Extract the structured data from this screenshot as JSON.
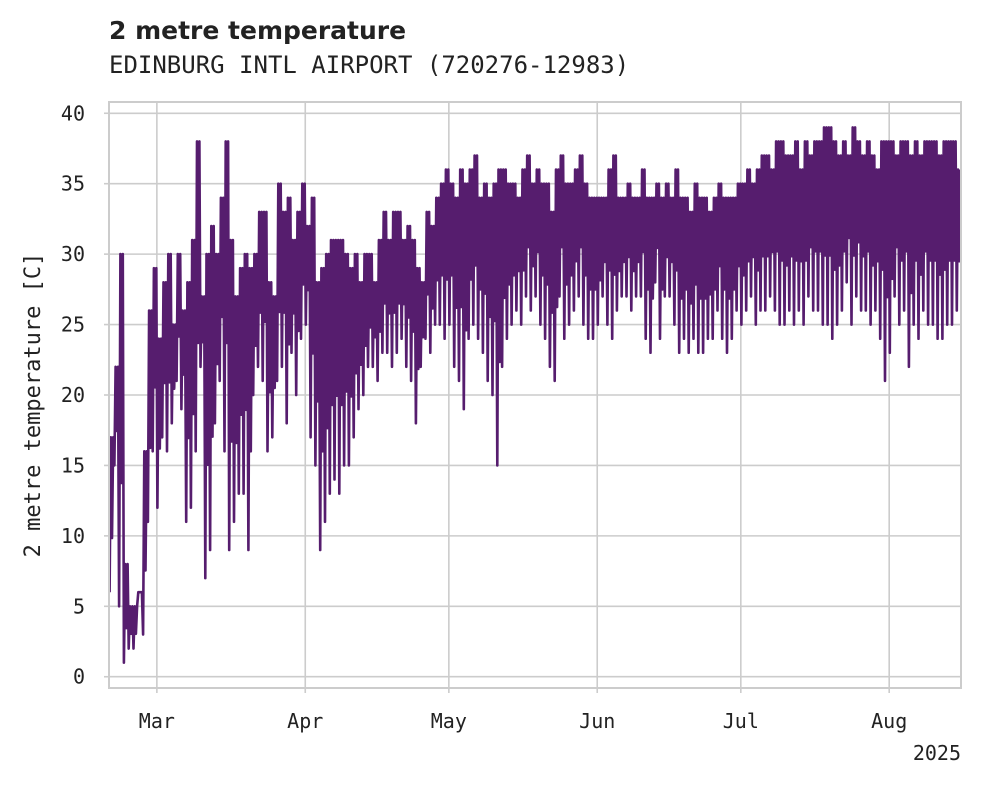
{
  "chart_data": {
    "type": "line",
    "title": "2 metre temperature",
    "subtitle": "EDINBURG INTL AIRPORT (720276-12983)",
    "xlabel": "",
    "ylabel": "2 metre temperature [C]",
    "xlim": [
      "2025-02-19",
      "2025-08-16"
    ],
    "ylim": [
      -0.8,
      40.8
    ],
    "x_ticks": [
      {
        "date": "2025-03-01",
        "label": "Mar"
      },
      {
        "date": "2025-04-01",
        "label": "Apr"
      },
      {
        "date": "2025-05-01",
        "label": "May"
      },
      {
        "date": "2025-06-01",
        "label": "Jun"
      },
      {
        "date": "2025-07-01",
        "label": "Jul"
      },
      {
        "date": "2025-08-01",
        "label": "Aug"
      }
    ],
    "x_offset_label": "2025",
    "y_ticks": [
      0,
      5,
      10,
      15,
      20,
      25,
      30,
      35,
      40
    ],
    "grid": true,
    "line_color": "#561d6e",
    "series": [
      {
        "x": [
          "2025-02-19",
          "2025-02-20",
          "2025-02-21",
          "2025-02-22",
          "2025-02-23",
          "2025-02-24",
          "2025-02-25",
          "2025-02-26",
          "2025-02-27",
          "2025-02-28",
          "2025-03-01",
          "2025-03-02",
          "2025-03-03",
          "2025-03-04",
          "2025-03-05",
          "2025-03-06",
          "2025-03-07",
          "2025-03-08",
          "2025-03-09",
          "2025-03-10",
          "2025-03-11",
          "2025-03-12",
          "2025-03-13",
          "2025-03-14",
          "2025-03-15",
          "2025-03-16",
          "2025-03-17",
          "2025-03-18",
          "2025-03-19",
          "2025-03-20",
          "2025-03-21",
          "2025-03-22",
          "2025-03-23",
          "2025-03-24",
          "2025-03-25",
          "2025-03-26",
          "2025-03-27",
          "2025-03-28",
          "2025-03-29",
          "2025-03-30",
          "2025-03-31",
          "2025-04-01",
          "2025-04-02",
          "2025-04-03",
          "2025-04-04",
          "2025-04-05",
          "2025-04-06",
          "2025-04-07",
          "2025-04-08",
          "2025-04-09",
          "2025-04-10",
          "2025-04-11",
          "2025-04-12",
          "2025-04-13",
          "2025-04-14",
          "2025-04-15",
          "2025-04-16",
          "2025-04-17",
          "2025-04-18",
          "2025-04-19",
          "2025-04-20",
          "2025-04-21",
          "2025-04-22",
          "2025-04-23",
          "2025-04-24",
          "2025-04-25",
          "2025-04-26",
          "2025-04-27",
          "2025-04-28",
          "2025-04-29",
          "2025-04-30",
          "2025-05-01",
          "2025-05-02",
          "2025-05-03",
          "2025-05-04",
          "2025-05-05",
          "2025-05-06",
          "2025-05-07",
          "2025-05-08",
          "2025-05-09",
          "2025-05-10",
          "2025-05-11",
          "2025-05-12",
          "2025-05-13",
          "2025-05-14",
          "2025-05-15",
          "2025-05-16",
          "2025-05-17",
          "2025-05-18",
          "2025-05-19",
          "2025-05-20",
          "2025-05-21",
          "2025-05-22",
          "2025-05-23",
          "2025-05-24",
          "2025-05-25",
          "2025-05-26",
          "2025-05-27",
          "2025-05-28",
          "2025-05-29",
          "2025-05-30",
          "2025-05-31",
          "2025-06-01",
          "2025-06-02",
          "2025-06-03",
          "2025-06-04",
          "2025-06-05",
          "2025-06-06",
          "2025-06-07",
          "2025-06-08",
          "2025-06-09",
          "2025-06-10",
          "2025-06-11",
          "2025-06-12",
          "2025-06-13",
          "2025-06-14",
          "2025-06-15",
          "2025-06-16",
          "2025-06-17",
          "2025-06-18",
          "2025-06-19",
          "2025-06-20",
          "2025-06-21",
          "2025-06-22",
          "2025-06-23",
          "2025-06-24",
          "2025-06-25",
          "2025-06-26",
          "2025-06-27",
          "2025-06-28",
          "2025-06-29",
          "2025-06-30",
          "2025-07-01",
          "2025-07-02",
          "2025-07-03",
          "2025-07-04",
          "2025-07-05",
          "2025-07-06",
          "2025-07-07",
          "2025-07-08",
          "2025-07-09",
          "2025-07-10",
          "2025-07-11",
          "2025-07-12",
          "2025-07-13",
          "2025-07-14",
          "2025-07-15",
          "2025-07-16",
          "2025-07-17",
          "2025-07-18",
          "2025-07-19",
          "2025-07-20",
          "2025-07-21",
          "2025-07-22",
          "2025-07-23",
          "2025-07-24",
          "2025-07-25",
          "2025-07-26",
          "2025-07-27",
          "2025-07-28",
          "2025-07-29",
          "2025-07-30",
          "2025-07-31",
          "2025-08-01",
          "2025-08-02",
          "2025-08-03",
          "2025-08-04",
          "2025-08-05",
          "2025-08-06",
          "2025-08-07",
          "2025-08-08",
          "2025-08-09",
          "2025-08-10",
          "2025-08-11",
          "2025-08-12",
          "2025-08-13",
          "2025-08-14",
          "2025-08-15"
        ],
        "min": [
          6,
          15,
          5,
          1,
          2,
          2,
          6,
          3,
          11,
          16,
          12,
          17,
          16,
          18,
          21,
          19,
          11,
          12,
          16,
          22,
          7,
          9,
          18,
          21,
          16,
          9,
          11,
          13,
          13,
          9,
          20,
          22,
          21,
          16,
          17,
          21,
          22,
          18,
          23,
          20,
          24,
          25,
          17,
          15,
          9,
          11,
          13,
          14,
          13,
          15,
          15,
          17,
          19,
          20,
          22,
          22,
          21,
          23,
          23,
          22,
          23,
          24,
          22,
          21,
          18,
          22,
          24,
          23,
          25,
          25,
          24,
          25,
          22,
          21,
          19,
          24,
          25,
          24,
          23,
          21,
          20,
          15,
          22,
          24,
          25,
          26,
          25,
          27,
          26,
          27,
          25,
          24,
          22,
          21,
          27,
          24,
          25,
          26,
          27,
          25,
          24,
          24,
          25,
          27,
          25,
          24,
          26,
          27,
          27,
          26,
          27,
          27,
          24,
          23,
          28,
          24,
          27,
          27,
          25,
          23,
          24,
          23,
          24,
          23,
          23,
          24,
          24,
          26,
          24,
          23,
          24,
          26,
          25,
          26,
          27,
          25,
          26,
          26,
          27,
          26,
          25,
          25,
          26,
          25,
          26,
          25,
          27,
          26,
          26,
          25,
          25,
          24,
          25,
          26,
          28,
          25,
          27,
          26,
          26,
          25,
          26,
          24,
          21,
          23,
          27,
          25,
          26,
          22,
          25,
          24,
          26,
          25,
          25,
          24,
          24,
          25,
          25,
          26
        ],
        "max": [
          17,
          22,
          30,
          8,
          5,
          5,
          6,
          16,
          26,
          29,
          24,
          28,
          30,
          25,
          30,
          26,
          28,
          31,
          38,
          27,
          30,
          32,
          30,
          34,
          38,
          31,
          27,
          29,
          30,
          29,
          30,
          33,
          33,
          28,
          27,
          35,
          33,
          34,
          31,
          33,
          35,
          32,
          34,
          28,
          29,
          30,
          31,
          31,
          31,
          30,
          29,
          30,
          28,
          30,
          30,
          28,
          31,
          33,
          31,
          33,
          33,
          31,
          32,
          31,
          29,
          28,
          33,
          32,
          34,
          35,
          36,
          35,
          34,
          36,
          35,
          36,
          37,
          34,
          35,
          34,
          35,
          36,
          36,
          35,
          35,
          34,
          36,
          37,
          35,
          36,
          35,
          35,
          33,
          36,
          37,
          35,
          35,
          36,
          37,
          35,
          34,
          34,
          34,
          34,
          36,
          37,
          34,
          34,
          35,
          34,
          34,
          36,
          34,
          34,
          35,
          34,
          35,
          34,
          36,
          34,
          34,
          33,
          35,
          34,
          34,
          33,
          34,
          35,
          34,
          34,
          34,
          35,
          35,
          36,
          35,
          36,
          37,
          37,
          36,
          38,
          38,
          37,
          37,
          38,
          36,
          38,
          37,
          38,
          38,
          39,
          39,
          38,
          37,
          38,
          37,
          39,
          38,
          37,
          38,
          37,
          36,
          38,
          38,
          38,
          37,
          38,
          38,
          37,
          38,
          37,
          38,
          38,
          38,
          37,
          38,
          38,
          38,
          36
        ]
      }
    ]
  }
}
